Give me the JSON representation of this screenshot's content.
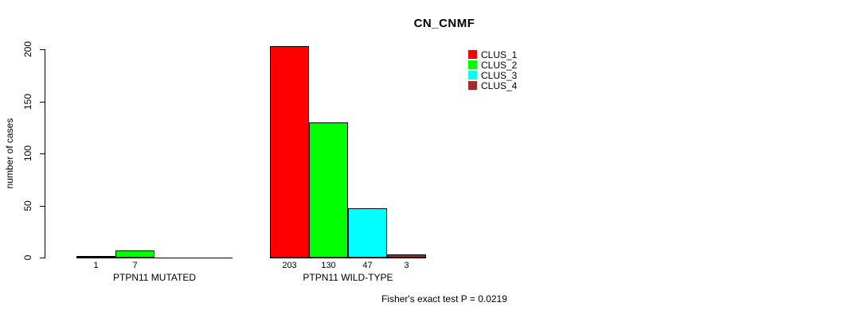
{
  "chart_data": {
    "type": "bar",
    "title": "CN_CNMF",
    "ylabel": "number of cases",
    "xlabel": "",
    "ylim": [
      0,
      200
    ],
    "yticks": [
      0,
      50,
      100,
      150,
      200
    ],
    "grid": false,
    "legend_position": "top-right",
    "legend": [
      {
        "label": "CLUS_1",
        "color": "#ff0000"
      },
      {
        "label": "CLUS_2",
        "color": "#00ff00"
      },
      {
        "label": "CLUS_3",
        "color": "#00ffff"
      },
      {
        "label": "CLUS_4",
        "color": "#a52a2a"
      }
    ],
    "groups": [
      {
        "category": "PTPN11 MUTATED",
        "bars": [
          {
            "cluster": "CLUS_1",
            "value": 1,
            "label": "1",
            "color": "#ff0000"
          },
          {
            "cluster": "CLUS_2",
            "value": 7,
            "label": "7",
            "color": "#00ff00"
          },
          {
            "cluster": "CLUS_3",
            "value": 0,
            "label": "",
            "color": "#00ffff"
          },
          {
            "cluster": "CLUS_4",
            "value": 0,
            "label": "",
            "color": "#a52a2a"
          }
        ]
      },
      {
        "category": "PTPN11 WILD-TYPE",
        "bars": [
          {
            "cluster": "CLUS_1",
            "value": 203,
            "label": "203",
            "color": "#ff0000"
          },
          {
            "cluster": "CLUS_2",
            "value": 130,
            "label": "130",
            "color": "#00ff00"
          },
          {
            "cluster": "CLUS_3",
            "value": 47,
            "label": "47",
            "color": "#00ffff"
          },
          {
            "cluster": "CLUS_4",
            "value": 3,
            "label": "3",
            "color": "#a52a2a"
          }
        ]
      }
    ],
    "annotation": "Fisher's exact test P = 0.0219"
  },
  "colors": {
    "background": "#ffffff",
    "axis": "#000000",
    "text": "#000000"
  }
}
